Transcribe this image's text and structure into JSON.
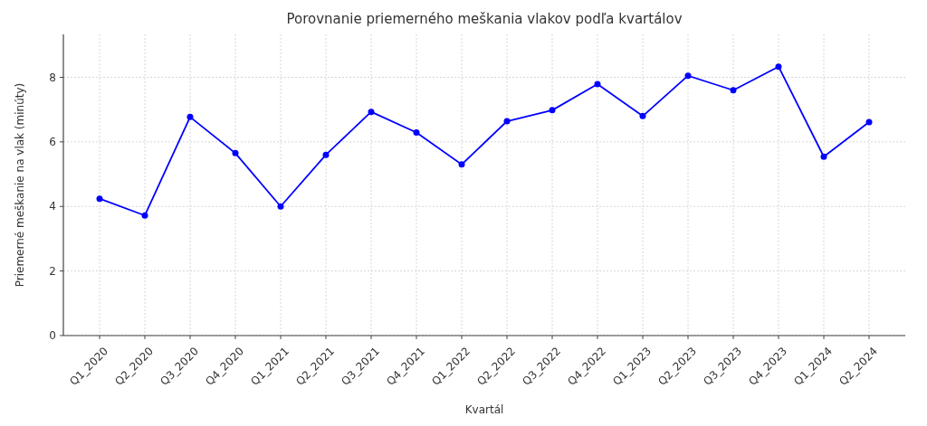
{
  "chart_data": {
    "type": "line",
    "title": "Porovnanie priemerného meškania vlakov podľa kvartálov",
    "xlabel": "Kvartál",
    "ylabel": "Priemerné meškanie na vlak (minúty)",
    "categories": [
      "Q1_2020",
      "Q2_2020",
      "Q3_2020",
      "Q4_2020",
      "Q1_2021",
      "Q2_2021",
      "Q3_2021",
      "Q4_2021",
      "Q1_2022",
      "Q2_2022",
      "Q3_2022",
      "Q4_2022",
      "Q1_2023",
      "Q2_2023",
      "Q3_2023",
      "Q4_2023",
      "Q1_2024",
      "Q2_2024"
    ],
    "series": [
      {
        "color": "#0000ff",
        "values": [
          4.24,
          3.72,
          6.77,
          5.65,
          4.0,
          5.6,
          6.93,
          6.29,
          5.3,
          6.64,
          6.98,
          7.79,
          6.8,
          8.05,
          7.6,
          8.33,
          5.54,
          6.61
        ]
      }
    ],
    "ylim": [
      0,
      9.33
    ],
    "yticks": [
      0,
      2,
      4,
      6,
      8
    ],
    "grid": true,
    "marker": "circle",
    "line_style": "solid"
  }
}
